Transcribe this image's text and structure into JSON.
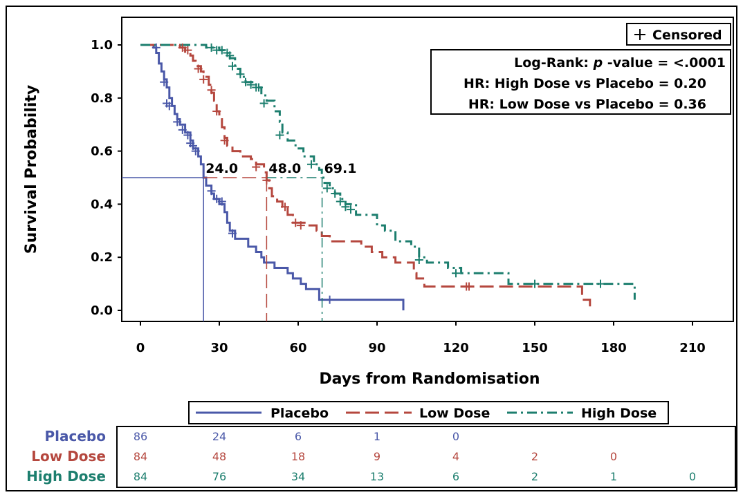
{
  "chart_data": {
    "type": "line",
    "subtype": "kaplan-meier survival curve",
    "xlabel": "Days from Randomisation",
    "ylabel": "Survival Probability",
    "xlim": [
      0,
      210
    ],
    "ylim": [
      0,
      1
    ],
    "xticks": [
      0,
      30,
      60,
      90,
      120,
      150,
      180,
      210
    ],
    "yticks": [
      "0.0",
      "0.2",
      "0.4",
      "0.6",
      "0.8",
      "1.0"
    ],
    "grid": false,
    "censored_legend": "Censored",
    "stats": [
      {
        "label": "Log-Rank: ",
        "italic": "p",
        "rest": " -value = <.0001"
      },
      {
        "label": "HR: High Dose vs Placebo = ",
        "value": "0.20"
      },
      {
        "label": "HR: Low Dose vs Placebo = ",
        "value": "0.36"
      }
    ],
    "medians": [
      {
        "series": "Placebo",
        "x": 24.0,
        "label": "24.0"
      },
      {
        "series": "Low Dose",
        "x": 48.0,
        "label": "48.0"
      },
      {
        "series": "High Dose",
        "x": 69.1,
        "label": "69.1"
      }
    ],
    "legend_position": "below-plot",
    "series": [
      {
        "name": "Placebo",
        "color": "#4a58a8",
        "dash": "solid",
        "steps": [
          [
            0,
            1.0
          ],
          [
            5,
            0.99
          ],
          [
            6,
            0.97
          ],
          [
            7,
            0.93
          ],
          [
            8,
            0.9
          ],
          [
            9,
            0.87
          ],
          [
            10,
            0.84
          ],
          [
            11,
            0.8
          ],
          [
            12,
            0.77
          ],
          [
            13,
            0.74
          ],
          [
            14,
            0.72
          ],
          [
            15,
            0.7
          ],
          [
            17,
            0.67
          ],
          [
            19,
            0.64
          ],
          [
            20,
            0.61
          ],
          [
            22,
            0.58
          ],
          [
            23,
            0.55
          ],
          [
            24,
            0.5
          ],
          [
            25,
            0.47
          ],
          [
            27,
            0.44
          ],
          [
            28,
            0.42
          ],
          [
            30,
            0.4
          ],
          [
            32,
            0.37
          ],
          [
            33,
            0.33
          ],
          [
            34,
            0.3
          ],
          [
            36,
            0.27
          ],
          [
            41,
            0.24
          ],
          [
            44,
            0.22
          ],
          [
            46,
            0.2
          ],
          [
            47,
            0.18
          ],
          [
            51,
            0.16
          ],
          [
            56,
            0.14
          ],
          [
            58,
            0.12
          ],
          [
            61,
            0.1
          ],
          [
            63,
            0.08
          ],
          [
            68,
            0.04
          ],
          [
            100,
            0.04
          ],
          [
            100,
            0.0
          ]
        ],
        "censored": [
          [
            6,
            0.99
          ],
          [
            9,
            0.86
          ],
          [
            10,
            0.78
          ],
          [
            11,
            0.77
          ],
          [
            14,
            0.71
          ],
          [
            16,
            0.68
          ],
          [
            18,
            0.66
          ],
          [
            19,
            0.63
          ],
          [
            20,
            0.62
          ],
          [
            21,
            0.6
          ],
          [
            27,
            0.45
          ],
          [
            29,
            0.42
          ],
          [
            31,
            0.41
          ],
          [
            35,
            0.29
          ],
          [
            72,
            0.04
          ]
        ]
      },
      {
        "name": "Low Dose",
        "color": "#b5473e",
        "dash": "long-dash",
        "steps": [
          [
            0,
            1.0
          ],
          [
            15,
            0.99
          ],
          [
            17,
            0.97
          ],
          [
            19,
            0.96
          ],
          [
            20,
            0.94
          ],
          [
            21,
            0.92
          ],
          [
            23,
            0.9
          ],
          [
            24,
            0.88
          ],
          [
            26,
            0.85
          ],
          [
            27,
            0.82
          ],
          [
            28,
            0.79
          ],
          [
            29,
            0.75
          ],
          [
            30,
            0.72
          ],
          [
            31,
            0.69
          ],
          [
            32,
            0.65
          ],
          [
            33,
            0.62
          ],
          [
            35,
            0.6
          ],
          [
            38,
            0.58
          ],
          [
            42,
            0.57
          ],
          [
            44,
            0.55
          ],
          [
            47,
            0.52
          ],
          [
            48,
            0.49
          ],
          [
            49,
            0.46
          ],
          [
            50,
            0.43
          ],
          [
            52,
            0.41
          ],
          [
            54,
            0.39
          ],
          [
            56,
            0.36
          ],
          [
            58,
            0.33
          ],
          [
            63,
            0.32
          ],
          [
            67,
            0.3
          ],
          [
            69,
            0.28
          ],
          [
            72,
            0.26
          ],
          [
            84,
            0.24
          ],
          [
            88,
            0.22
          ],
          [
            92,
            0.2
          ],
          [
            97,
            0.18
          ],
          [
            104,
            0.14
          ],
          [
            105,
            0.12
          ],
          [
            108,
            0.09
          ],
          [
            165,
            0.09
          ],
          [
            168,
            0.04
          ],
          [
            171,
            0.04
          ],
          [
            171,
            0.0
          ]
        ],
        "censored": [
          [
            16,
            0.99
          ],
          [
            18,
            0.98
          ],
          [
            22,
            0.91
          ],
          [
            24,
            0.87
          ],
          [
            27,
            0.83
          ],
          [
            29,
            0.75
          ],
          [
            32,
            0.64
          ],
          [
            44,
            0.54
          ],
          [
            48,
            0.49
          ],
          [
            55,
            0.39
          ],
          [
            59,
            0.33
          ],
          [
            61,
            0.32
          ],
          [
            124,
            0.09
          ],
          [
            125,
            0.09
          ]
        ]
      },
      {
        "name": "High Dose",
        "color": "#1c7e6e",
        "dash": "dash-dot",
        "steps": [
          [
            0,
            1.0
          ],
          [
            25,
            0.99
          ],
          [
            30,
            0.98
          ],
          [
            32,
            0.97
          ],
          [
            34,
            0.95
          ],
          [
            36,
            0.91
          ],
          [
            38,
            0.88
          ],
          [
            40,
            0.86
          ],
          [
            44,
            0.84
          ],
          [
            46,
            0.81
          ],
          [
            48,
            0.79
          ],
          [
            51,
            0.75
          ],
          [
            53,
            0.71
          ],
          [
            54,
            0.67
          ],
          [
            56,
            0.64
          ],
          [
            59,
            0.61
          ],
          [
            62,
            0.58
          ],
          [
            66,
            0.55
          ],
          [
            68,
            0.53
          ],
          [
            69,
            0.5
          ],
          [
            70,
            0.48
          ],
          [
            72,
            0.46
          ],
          [
            74,
            0.44
          ],
          [
            76,
            0.42
          ],
          [
            78,
            0.4
          ],
          [
            82,
            0.36
          ],
          [
            90,
            0.32
          ],
          [
            93,
            0.3
          ],
          [
            97,
            0.26
          ],
          [
            103,
            0.24
          ],
          [
            106,
            0.2
          ],
          [
            109,
            0.18
          ],
          [
            117,
            0.16
          ],
          [
            122,
            0.14
          ],
          [
            140,
            0.1
          ],
          [
            188,
            0.1
          ],
          [
            188,
            0.04
          ]
        ],
        "censored": [
          [
            27,
            0.99
          ],
          [
            29,
            0.98
          ],
          [
            31,
            0.98
          ],
          [
            33,
            0.97
          ],
          [
            34,
            0.96
          ],
          [
            35,
            0.92
          ],
          [
            38,
            0.89
          ],
          [
            40,
            0.86
          ],
          [
            42,
            0.85
          ],
          [
            44,
            0.84
          ],
          [
            45,
            0.84
          ],
          [
            47,
            0.78
          ],
          [
            53,
            0.66
          ],
          [
            65,
            0.55
          ],
          [
            71,
            0.46
          ],
          [
            74,
            0.44
          ],
          [
            76,
            0.41
          ],
          [
            78,
            0.39
          ],
          [
            80,
            0.38
          ],
          [
            106,
            0.19
          ],
          [
            120,
            0.14
          ],
          [
            150,
            0.1
          ],
          [
            175,
            0.1
          ]
        ]
      }
    ]
  },
  "risk_table": {
    "times": [
      0,
      30,
      60,
      90,
      120,
      150,
      180,
      210
    ],
    "rows": [
      {
        "name": "Placebo",
        "color": "#4a58a8",
        "values": [
          "86",
          "24",
          "6",
          "1",
          "0",
          "",
          "",
          ""
        ]
      },
      {
        "name": "Low Dose",
        "color": "#b5473e",
        "values": [
          "84",
          "48",
          "18",
          "9",
          "4",
          "2",
          "0",
          ""
        ]
      },
      {
        "name": "High Dose",
        "color": "#1c7e6e",
        "values": [
          "84",
          "76",
          "34",
          "13",
          "6",
          "2",
          "1",
          "0"
        ]
      }
    ]
  }
}
